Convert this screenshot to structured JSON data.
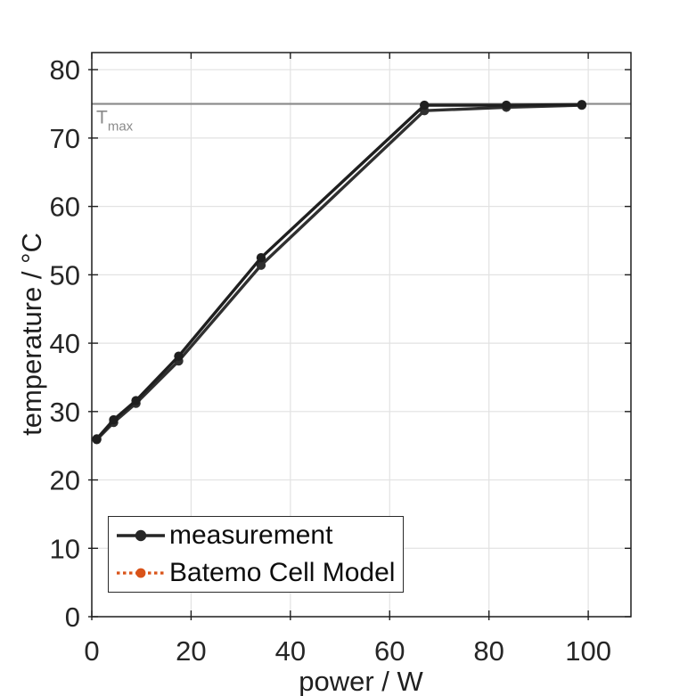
{
  "chart_data": {
    "type": "line",
    "title": "",
    "xlabel": "power / W",
    "ylabel": "temperature / °C",
    "xlim": [
      0,
      108.6
    ],
    "ylim": [
      0,
      82.5
    ],
    "xticks": [
      0,
      20,
      40,
      60,
      80,
      100
    ],
    "yticks": [
      0,
      10,
      20,
      30,
      40,
      50,
      60,
      70,
      80
    ],
    "grid": true,
    "legend_position": "bottom-left",
    "annotations": [
      {
        "type": "hline",
        "y": 75,
        "label_main": "T",
        "label_sub": "max",
        "color": "#8a8a8a"
      }
    ],
    "series": [
      {
        "name": "measurement",
        "color": "#262626",
        "style": "solid",
        "marker": "circle",
        "x": [
          1.0,
          4.4,
          8.9,
          17.5,
          34.1,
          67.0,
          83.5,
          98.7
        ],
        "y": [
          26.0,
          28.8,
          31.6,
          38.1,
          52.5,
          74.8,
          74.8,
          74.9
        ]
      },
      {
        "name": "Batemo Cell Model",
        "color": "#D95319",
        "style": "dotted",
        "marker": "circle",
        "x": [
          1.0,
          4.4,
          8.9,
          17.5,
          34.1,
          67.0,
          83.5,
          98.7
        ],
        "y": [
          25.9,
          28.4,
          31.2,
          37.4,
          51.4,
          74.0,
          74.5,
          74.8
        ]
      }
    ]
  },
  "colors": {
    "grid": "#e2e2e2",
    "axis": "#1f1f1f",
    "tick_text": "#262626",
    "tmax": "#8a8a8a"
  }
}
